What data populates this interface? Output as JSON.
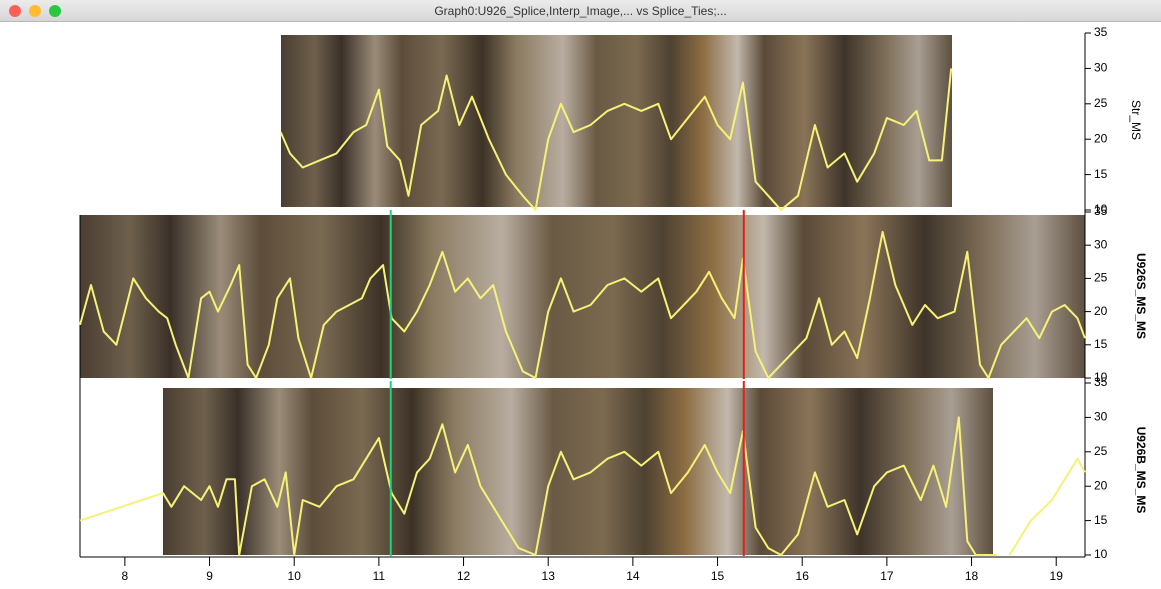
{
  "window_title": "Graph0:U926_Splice,Interp_Image,... vs Splice_Ties;...",
  "chart_data": [
    {
      "type": "line",
      "ylabel": "Str_MS",
      "color": "#f6f178",
      "xlim": [
        7.47,
        19.34
      ],
      "ylim": [
        10,
        35
      ],
      "yticks": [
        10,
        15,
        20,
        25,
        30,
        35
      ],
      "x": [
        9.84,
        9.95,
        10.1,
        10.3,
        10.5,
        10.7,
        10.85,
        11.0,
        11.1,
        11.25,
        11.35,
        11.5,
        11.7,
        11.8,
        11.95,
        12.1,
        12.3,
        12.5,
        12.7,
        12.85,
        13.0,
        13.15,
        13.3,
        13.5,
        13.7,
        13.9,
        14.1,
        14.3,
        14.45,
        14.65,
        14.85,
        15.0,
        15.15,
        15.3,
        15.45,
        15.6,
        15.75,
        15.95,
        16.15,
        16.3,
        16.5,
        16.65,
        16.85,
        17.0,
        17.2,
        17.35,
        17.5,
        17.65,
        17.76
      ],
      "values": [
        21,
        18,
        16,
        17,
        18,
        21,
        22,
        27,
        19,
        17,
        12,
        22,
        24,
        29,
        22,
        26,
        20,
        15,
        12,
        10,
        20,
        25,
        21,
        22,
        24,
        25,
        24,
        25,
        20,
        23,
        26,
        22,
        20,
        28,
        14,
        12,
        10,
        12,
        22,
        16,
        18,
        14,
        18,
        23,
        22,
        24,
        17,
        17,
        30
      ]
    },
    {
      "type": "line",
      "ylabel": "U926S_MS_MS",
      "color": "#f6f178",
      "xlim": [
        7.47,
        19.34
      ],
      "ylim": [
        10,
        35
      ],
      "yticks": [
        10,
        15,
        20,
        25,
        30,
        35
      ],
      "vlines": [
        {
          "x": 11.14,
          "color": "#1fd27c"
        },
        {
          "x": 15.31,
          "color": "#e0201a"
        }
      ],
      "x": [
        7.47,
        7.6,
        7.75,
        7.9,
        8.0,
        8.1,
        8.25,
        8.4,
        8.5,
        8.6,
        8.75,
        8.9,
        9.0,
        9.1,
        9.25,
        9.35,
        9.45,
        9.55,
        9.7,
        9.8,
        9.95,
        10.05,
        10.2,
        10.35,
        10.5,
        10.65,
        10.8,
        10.9,
        11.05,
        11.15,
        11.3,
        11.45,
        11.6,
        11.75,
        11.9,
        12.05,
        12.2,
        12.35,
        12.5,
        12.7,
        12.85,
        13.0,
        13.15,
        13.3,
        13.5,
        13.7,
        13.9,
        14.1,
        14.3,
        14.45,
        14.6,
        14.75,
        14.9,
        15.05,
        15.2,
        15.3,
        15.45,
        15.6,
        15.75,
        15.9,
        16.05,
        16.2,
        16.35,
        16.5,
        16.65,
        16.8,
        16.95,
        17.1,
        17.3,
        17.45,
        17.6,
        17.8,
        17.95,
        18.1,
        18.2,
        18.35,
        18.5,
        18.65,
        18.8,
        18.95,
        19.1,
        19.25,
        19.34
      ],
      "values": [
        18,
        24,
        17,
        15,
        20,
        25,
        22,
        20,
        19,
        15,
        10,
        22,
        23,
        20,
        24,
        27,
        12,
        10,
        15,
        22,
        25,
        16,
        10,
        18,
        20,
        21,
        22,
        25,
        27,
        19,
        17,
        20,
        24,
        29,
        23,
        25,
        22,
        24,
        17,
        11,
        10,
        20,
        25,
        20,
        21,
        24,
        25,
        23,
        25,
        19,
        21,
        23,
        26,
        22,
        19,
        28,
        14,
        10,
        12,
        14,
        16,
        22,
        15,
        17,
        13,
        22,
        32,
        24,
        18,
        21,
        19,
        20,
        29,
        12,
        10,
        15,
        17,
        19,
        16,
        20,
        21,
        19,
        16
      ]
    },
    {
      "type": "line",
      "ylabel": "U926B_MS_MS",
      "color": "#f6f178",
      "xlim": [
        7.47,
        19.34
      ],
      "ylim": [
        10,
        35
      ],
      "yticks": [
        10,
        15,
        20,
        25,
        30,
        35
      ],
      "xticks": [
        8,
        9,
        10,
        11,
        12,
        13,
        14,
        15,
        16,
        17,
        18,
        19
      ],
      "vlines": [
        {
          "x": 11.14,
          "color": "#1fd27c"
        },
        {
          "x": 15.31,
          "color": "#e0201a"
        }
      ],
      "x": [
        7.47,
        8.45,
        8.55,
        8.7,
        8.9,
        9.0,
        9.1,
        9.2,
        9.3,
        9.35,
        9.5,
        9.65,
        9.8,
        9.9,
        10.0,
        10.1,
        10.3,
        10.5,
        10.7,
        10.9,
        11.0,
        11.15,
        11.3,
        11.45,
        11.6,
        11.75,
        11.9,
        12.05,
        12.2,
        12.45,
        12.65,
        12.85,
        13.0,
        13.15,
        13.3,
        13.5,
        13.7,
        13.9,
        14.1,
        14.3,
        14.45,
        14.65,
        14.85,
        15.0,
        15.15,
        15.3,
        15.45,
        15.6,
        15.75,
        15.95,
        16.15,
        16.3,
        16.5,
        16.65,
        16.85,
        17.0,
        17.2,
        17.4,
        17.55,
        17.7,
        17.85,
        17.95,
        18.05,
        18.3,
        18.38,
        18.45,
        18.7,
        18.95,
        19.1,
        19.25,
        19.34
      ],
      "values": [
        15,
        19,
        17,
        20,
        18,
        20,
        17,
        21,
        21,
        10,
        20,
        21,
        17,
        22,
        10,
        18,
        17,
        20,
        21,
        25,
        27,
        19,
        16,
        22,
        24,
        29,
        22,
        26,
        20,
        15,
        11,
        10,
        20,
        25,
        21,
        22,
        24,
        25,
        23,
        25,
        19,
        22,
        26,
        22,
        19,
        28,
        14,
        11,
        10,
        13,
        22,
        17,
        18,
        13,
        20,
        22,
        23,
        18,
        23,
        17,
        30,
        12,
        10,
        10,
        null,
        10,
        15,
        18,
        21,
        24,
        22
      ]
    }
  ]
}
